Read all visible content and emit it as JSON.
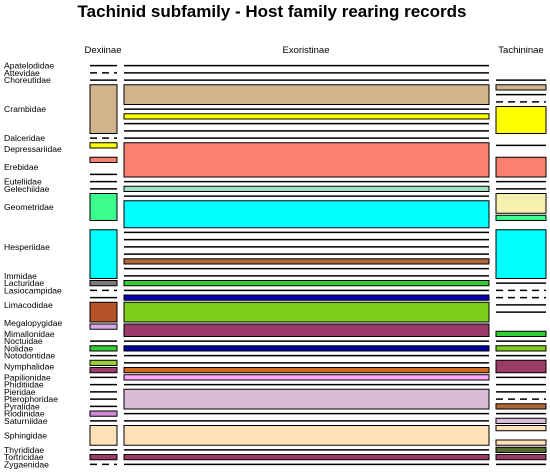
{
  "chart_data": {
    "type": "table",
    "title": "Tachinid subfamily - Host family rearing records",
    "columns": [
      "Dexiinae",
      "Exoristinae",
      "Tachininae"
    ],
    "families": [
      {
        "name": "Apatelodidae",
        "rows": 1
      },
      {
        "name": "Attevidae",
        "rows": 1
      },
      {
        "name": "Choreutidae",
        "rows": 1
      },
      {
        "name": "Crambidae",
        "rows": 7
      },
      {
        "name": "Dalceridae",
        "rows": 1
      },
      {
        "name": "Depressariidae",
        "rows": 2
      },
      {
        "name": "Erebidae",
        "rows": 3
      },
      {
        "name": "Euteliidae",
        "rows": 1
      },
      {
        "name": "Gelechiidae",
        "rows": 1
      },
      {
        "name": "Geometridae",
        "rows": 4
      },
      {
        "name": "Hesperiidae",
        "rows": 7
      },
      {
        "name": "Immidae",
        "rows": 1
      },
      {
        "name": "Lacturidae",
        "rows": 1
      },
      {
        "name": "Lasiocampidae",
        "rows": 1
      },
      {
        "name": "Limacodidae",
        "rows": 3
      },
      {
        "name": "Megalopygidae",
        "rows": 2
      },
      {
        "name": "Mimallonidae",
        "rows": 1
      },
      {
        "name": "Noctuidae",
        "rows": 1
      },
      {
        "name": "Nolidae",
        "rows": 1
      },
      {
        "name": "Notodontidae",
        "rows": 1
      },
      {
        "name": "Nymphalidae",
        "rows": 2
      },
      {
        "name": "Papilionidae",
        "rows": 1
      },
      {
        "name": "Phiditiidae",
        "rows": 1
      },
      {
        "name": "Pieridae",
        "rows": 1
      },
      {
        "name": "Pterophoridae",
        "rows": 1
      },
      {
        "name": "Pyralidae",
        "rows": 1
      },
      {
        "name": "Riodinidae",
        "rows": 1
      },
      {
        "name": "Saturniidae",
        "rows": 1
      },
      {
        "name": "Sphingidae",
        "rows": 3
      },
      {
        "name": "Thyrididae",
        "rows": 1
      },
      {
        "name": "Tortricidae",
        "rows": 1
      },
      {
        "name": "Zygaenidae",
        "rows": 1
      }
    ],
    "cells": [
      {
        "col": 0,
        "row": 0,
        "kind": "line"
      },
      {
        "col": 1,
        "row": 0,
        "kind": "line"
      },
      {
        "col": 0,
        "row": 1,
        "kind": "dash"
      },
      {
        "col": 1,
        "row": 1,
        "kind": "line"
      },
      {
        "col": 0,
        "row": 2,
        "kind": "line"
      },
      {
        "col": 1,
        "row": 2,
        "kind": "line"
      },
      {
        "col": 2,
        "row": 2,
        "kind": "line"
      },
      {
        "col": 0,
        "row": 3,
        "kind": "box",
        "span": 7,
        "color": "#d2b48c"
      },
      {
        "col": 1,
        "row": 3,
        "kind": "box",
        "span": 3,
        "color": "#d2b48c"
      },
      {
        "col": 1,
        "row": 6,
        "kind": "line"
      },
      {
        "col": 1,
        "row": 7,
        "kind": "box",
        "span": 1,
        "color": "#ffff00"
      },
      {
        "col": 1,
        "row": 8,
        "kind": "line"
      },
      {
        "col": 1,
        "row": 9,
        "kind": "line"
      },
      {
        "col": 2,
        "row": 3,
        "kind": "box",
        "span": 1,
        "color": "#d2b48c"
      },
      {
        "col": 2,
        "row": 4,
        "kind": "line"
      },
      {
        "col": 2,
        "row": 5,
        "kind": "dash"
      },
      {
        "col": 2,
        "row": 6,
        "kind": "box",
        "span": 4,
        "color": "#ffff00"
      },
      {
        "col": 0,
        "row": 10,
        "kind": "dash"
      },
      {
        "col": 1,
        "row": 10,
        "kind": "line"
      },
      {
        "col": 0,
        "row": 11,
        "kind": "box",
        "span": 1,
        "color": "#ffff00"
      },
      {
        "col": 1,
        "row": 11,
        "kind": "box",
        "span": 5,
        "color": "#fa8072"
      },
      {
        "col": 2,
        "row": 11,
        "kind": "line"
      },
      {
        "col": 0,
        "row": 13,
        "kind": "box",
        "span": 1,
        "color": "#fa8072"
      },
      {
        "col": 2,
        "row": 13,
        "kind": "box",
        "span": 3,
        "color": "#fa8072"
      },
      {
        "col": 0,
        "row": 15,
        "kind": "line"
      },
      {
        "col": 0,
        "row": 16,
        "kind": "line"
      },
      {
        "col": 1,
        "row": 16,
        "kind": "line"
      },
      {
        "col": 2,
        "row": 16,
        "kind": "line"
      },
      {
        "col": 0,
        "row": 17,
        "kind": "line"
      },
      {
        "col": 1,
        "row": 17,
        "kind": "box",
        "span": 1,
        "color": "#a0e0c0"
      },
      {
        "col": 2,
        "row": 17,
        "kind": "line"
      },
      {
        "col": 0,
        "row": 18,
        "kind": "box",
        "span": 4,
        "color": "#3cfc8e"
      },
      {
        "col": 1,
        "row": 18,
        "kind": "line"
      },
      {
        "col": 1,
        "row": 19,
        "kind": "box",
        "span": 4,
        "color": "#00ffff"
      },
      {
        "col": 2,
        "row": 18,
        "kind": "box",
        "span": 3,
        "color": "#f5f0b0"
      },
      {
        "col": 2,
        "row": 21,
        "kind": "box",
        "span": 1,
        "color": "#3cfc8e"
      },
      {
        "col": 1,
        "row": 23,
        "kind": "line"
      },
      {
        "col": 1,
        "row": 24,
        "kind": "line"
      },
      {
        "col": 1,
        "row": 25,
        "kind": "line"
      },
      {
        "col": 1,
        "row": 26,
        "kind": "line"
      },
      {
        "col": 1,
        "row": 27,
        "kind": "box",
        "span": 1,
        "color": "#b0683a"
      },
      {
        "col": 1,
        "row": 28,
        "kind": "line"
      },
      {
        "col": 1,
        "row": 29,
        "kind": "line"
      },
      {
        "col": 0,
        "row": 23,
        "kind": "box",
        "span": 7,
        "color": "#00ffff"
      },
      {
        "col": 2,
        "row": 23,
        "kind": "box",
        "span": 7,
        "color": "#00ffff"
      },
      {
        "col": 0,
        "row": 30,
        "kind": "box",
        "span": 1,
        "color": "#7b7b7b"
      },
      {
        "col": 1,
        "row": 30,
        "kind": "box",
        "span": 1,
        "color": "#32cd32"
      },
      {
        "col": 2,
        "row": 30,
        "kind": "line"
      },
      {
        "col": 0,
        "row": 31,
        "kind": "dash"
      },
      {
        "col": 1,
        "row": 31,
        "kind": "line"
      },
      {
        "col": 2,
        "row": 31,
        "kind": "dash"
      },
      {
        "col": 0,
        "row": 32,
        "kind": "line"
      },
      {
        "col": 1,
        "row": 32,
        "kind": "box",
        "span": 1,
        "color": "#0000b0"
      },
      {
        "col": 2,
        "row": 32,
        "kind": "dash"
      },
      {
        "col": 0,
        "row": 33,
        "kind": "box",
        "span": 3,
        "color": "#b5522a"
      },
      {
        "col": 1,
        "row": 33,
        "kind": "box",
        "span": 3,
        "color": "#7ccd1c"
      },
      {
        "col": 2,
        "row": 33,
        "kind": "line"
      },
      {
        "col": 2,
        "row": 34,
        "kind": "line"
      },
      {
        "col": 0,
        "row": 36,
        "kind": "box",
        "span": 1,
        "color": "#d8a8e8"
      },
      {
        "col": 1,
        "row": 36,
        "kind": "box",
        "span": 2,
        "color": "#9b3b6a"
      },
      {
        "col": 2,
        "row": 37,
        "kind": "box",
        "span": 1,
        "color": "#32cd32"
      },
      {
        "col": 0,
        "row": 38,
        "kind": "line"
      },
      {
        "col": 1,
        "row": 38,
        "kind": "line"
      },
      {
        "col": 2,
        "row": 38,
        "kind": "line"
      },
      {
        "col": 0,
        "row": 39,
        "kind": "box",
        "span": 1,
        "color": "#32cd32"
      },
      {
        "col": 1,
        "row": 39,
        "kind": "box",
        "span": 1,
        "color": "#0000a0"
      },
      {
        "col": 2,
        "row": 39,
        "kind": "box",
        "span": 1,
        "color": "#7ccd1c"
      },
      {
        "col": 0,
        "row": 40,
        "kind": "line"
      },
      {
        "col": 1,
        "row": 40,
        "kind": "line"
      },
      {
        "col": 2,
        "row": 40,
        "kind": "line"
      },
      {
        "col": 0,
        "row": 41,
        "kind": "box",
        "span": 1,
        "color": "#9acd32"
      },
      {
        "col": 1,
        "row": 41,
        "kind": "line"
      },
      {
        "col": 2,
        "row": 41,
        "kind": "box",
        "span": 2,
        "color": "#9b3b6a"
      },
      {
        "col": 0,
        "row": 42,
        "kind": "box",
        "span": 1,
        "color": "#9b3b6a"
      },
      {
        "col": 1,
        "row": 42,
        "kind": "box",
        "span": 1,
        "color": "#cd6a20"
      },
      {
        "col": 0,
        "row": 43,
        "kind": "line"
      },
      {
        "col": 1,
        "row": 43,
        "kind": "box",
        "span": 1,
        "color": "#ffaaff"
      },
      {
        "col": 2,
        "row": 43,
        "kind": "line"
      },
      {
        "col": 0,
        "row": 44,
        "kind": "line"
      },
      {
        "col": 1,
        "row": 44,
        "kind": "line"
      },
      {
        "col": 2,
        "row": 44,
        "kind": "line"
      },
      {
        "col": 0,
        "row": 45,
        "kind": "line"
      },
      {
        "col": 1,
        "row": 45,
        "kind": "box",
        "span": 3,
        "color": "#d8bcd8"
      },
      {
        "col": 2,
        "row": 45,
        "kind": "line"
      },
      {
        "col": 0,
        "row": 46,
        "kind": "line"
      },
      {
        "col": 2,
        "row": 46,
        "kind": "dash"
      },
      {
        "col": 0,
        "row": 47,
        "kind": "line"
      },
      {
        "col": 2,
        "row": 47,
        "kind": "box",
        "span": 1,
        "color": "#b0683a"
      },
      {
        "col": 0,
        "row": 48,
        "kind": "box",
        "span": 1,
        "color": "#d08ad8"
      },
      {
        "col": 1,
        "row": 48,
        "kind": "line"
      },
      {
        "col": 2,
        "row": 48,
        "kind": "line"
      },
      {
        "col": 0,
        "row": 49,
        "kind": "line"
      },
      {
        "col": 1,
        "row": 49,
        "kind": "line"
      },
      {
        "col": 2,
        "row": 49,
        "kind": "box",
        "span": 1,
        "color": "#d8bcd8"
      },
      {
        "col": 0,
        "row": 50,
        "kind": "box",
        "span": 3,
        "color": "#ffe0b8"
      },
      {
        "col": 1,
        "row": 50,
        "kind": "box",
        "span": 3,
        "color": "#ffe0b8"
      },
      {
        "col": 2,
        "row": 50,
        "kind": "box",
        "span": 1,
        "color": "#ffe0b8"
      },
      {
        "col": 2,
        "row": 52,
        "kind": "box",
        "span": 1,
        "color": "#ffe0b8"
      },
      {
        "col": 0,
        "row": 53,
        "kind": "line"
      },
      {
        "col": 1,
        "row": 53,
        "kind": "line"
      },
      {
        "col": 2,
        "row": 53,
        "kind": "box",
        "span": 1,
        "color": "#556b2f"
      },
      {
        "col": 0,
        "row": 54,
        "kind": "box",
        "span": 1,
        "color": "#9b3b6a"
      },
      {
        "col": 1,
        "row": 54,
        "kind": "box",
        "span": 1,
        "color": "#9b3b6a"
      },
      {
        "col": 2,
        "row": 54,
        "kind": "box",
        "span": 1,
        "color": "#9b3b6a"
      },
      {
        "col": 0,
        "row": 55,
        "kind": "dash"
      },
      {
        "col": 1,
        "row": 55,
        "kind": "line"
      },
      {
        "col": 2,
        "row": 55,
        "kind": "line"
      }
    ]
  }
}
